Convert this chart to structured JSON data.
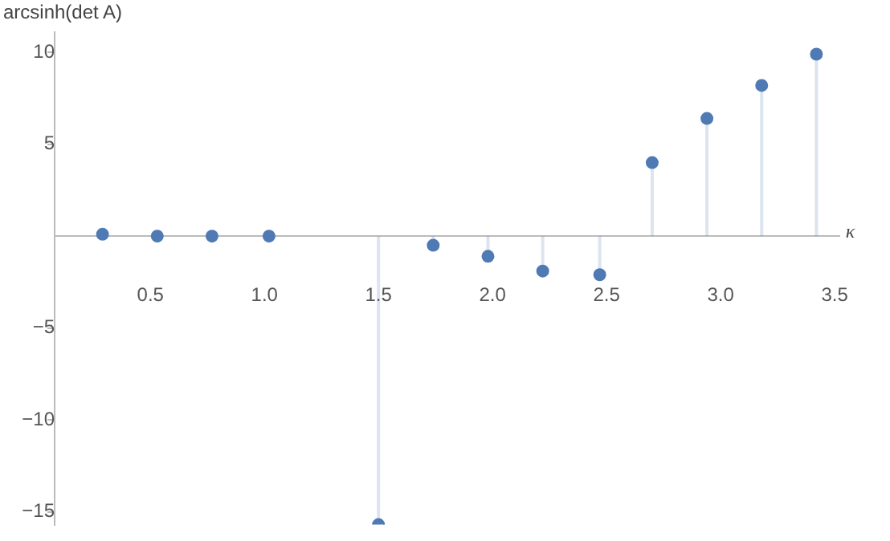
{
  "chart_data": {
    "type": "lollipop",
    "xlabel": "κ",
    "ylabel": "arcsinh(det A)",
    "x": [
      0.29,
      0.53,
      0.77,
      1.02,
      1.5,
      1.74,
      1.98,
      2.22,
      2.47,
      2.7,
      2.94,
      3.18,
      3.42
    ],
    "values": [
      0.1,
      0,
      0,
      0,
      -15.7,
      -0.5,
      -1.1,
      -1.9,
      -2.1,
      4.0,
      6.4,
      8.2,
      9.9
    ],
    "color": "#4f7ab4",
    "marker": "circle",
    "grid": false,
    "xlim": [
      0.08,
      3.52
    ],
    "ylim": [
      -15.7,
      11.1
    ],
    "xticks": [
      {
        "value": 0.5,
        "label": "0.5"
      },
      {
        "value": 1,
        "label": "1.0"
      },
      {
        "value": 1.5,
        "label": "1.5"
      },
      {
        "value": 2,
        "label": "2.0"
      },
      {
        "value": 2.5,
        "label": "2.5"
      },
      {
        "value": 3,
        "label": "3.0"
      },
      {
        "value": 3.5,
        "label": "3.5"
      }
    ],
    "yticks": [
      {
        "value": -15,
        "label": "−15"
      },
      {
        "value": -10,
        "label": "−10"
      },
      {
        "value": -5,
        "label": "−5"
      },
      5,
      10
    ]
  }
}
